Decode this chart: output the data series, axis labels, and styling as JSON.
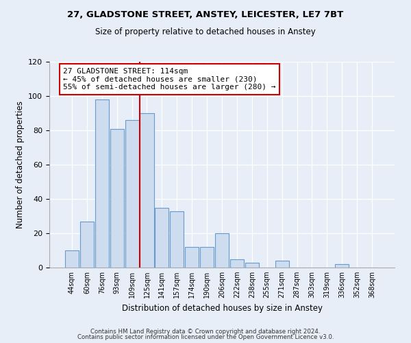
{
  "title1": "27, GLADSTONE STREET, ANSTEY, LEICESTER, LE7 7BT",
  "title2": "Size of property relative to detached houses in Anstey",
  "xlabel": "Distribution of detached houses by size in Anstey",
  "ylabel": "Number of detached properties",
  "bin_labels": [
    "44sqm",
    "60sqm",
    "76sqm",
    "93sqm",
    "109sqm",
    "125sqm",
    "141sqm",
    "157sqm",
    "174sqm",
    "190sqm",
    "206sqm",
    "222sqm",
    "238sqm",
    "255sqm",
    "271sqm",
    "287sqm",
    "303sqm",
    "319sqm",
    "336sqm",
    "352sqm",
    "368sqm"
  ],
  "bar_heights": [
    10,
    27,
    98,
    81,
    86,
    90,
    35,
    33,
    12,
    12,
    20,
    5,
    3,
    0,
    4,
    0,
    0,
    0,
    2,
    0,
    0
  ],
  "bar_color": "#cddcee",
  "bar_edge_color": "#6699cc",
  "vline_color": "#cc0000",
  "annotation_text": "27 GLADSTONE STREET: 114sqm\n← 45% of detached houses are smaller (230)\n55% of semi-detached houses are larger (280) →",
  "annotation_box_edge_color": "#cc0000",
  "ylim": [
    0,
    120
  ],
  "yticks": [
    0,
    20,
    40,
    60,
    80,
    100,
    120
  ],
  "footer1": "Contains HM Land Registry data © Crown copyright and database right 2024.",
  "footer2": "Contains public sector information licensed under the Open Government Licence v3.0.",
  "bg_color": "#e8eef8",
  "plot_bg_color": "#e8eef8"
}
